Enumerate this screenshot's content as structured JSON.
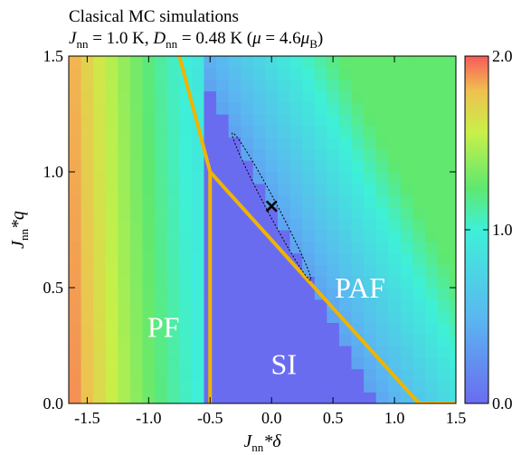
{
  "chart_data": {
    "type": "heatmap",
    "title_line1": "Clasical MC simulations",
    "title_line2": {
      "j_sym": "J",
      "j_sub": "nn",
      "j_val": " = 1.0 K, ",
      "d_sym": "D",
      "d_sub": "nn",
      "d_val": " = 0.48 K (",
      "mu_sym": "μ",
      "mu_eq": " = 4.6",
      "mu_unit": "μ",
      "mu_sub": "B",
      "close": ")"
    },
    "xlabel": {
      "sym": "J",
      "sub": "nn",
      "rest": "*δ"
    },
    "ylabel": {
      "sym": "J",
      "sub": "nn",
      "rest": "*q"
    },
    "xlim": [
      -1.65,
      1.5
    ],
    "ylim": [
      0.0,
      1.5
    ],
    "xticks": [
      "-1.5",
      "-1.0",
      "-0.5",
      "0.0",
      "0.5",
      "1.0",
      "1.5"
    ],
    "yticks": [
      "0.0",
      "0.5",
      "1.0",
      "1.5"
    ],
    "grid": {
      "x_start": -1.65,
      "dx": 0.1,
      "nx": 32,
      "y_start": 0.0,
      "dy": 0.05,
      "ny": 30
    },
    "colorbar": {
      "min": 0.0,
      "max": 2.0,
      "ticks": [
        "0.0",
        "1.0",
        "2.0"
      ]
    },
    "phase_boundaries": [
      {
        "points": [
          [
            -0.75,
            1.5
          ],
          [
            -0.5,
            1.0
          ],
          [
            -0.5,
            0.0
          ]
        ]
      },
      {
        "points": [
          [
            -0.5,
            1.0
          ],
          [
            1.2,
            0.0
          ],
          [
            1.5,
            0.0
          ]
        ]
      }
    ],
    "regions": [
      {
        "label": "PF",
        "x": -0.88,
        "y": 0.33
      },
      {
        "label": "SI",
        "x": 0.1,
        "y": 0.17
      },
      {
        "label": "PAF",
        "x": 0.72,
        "y": 0.5
      }
    ],
    "marker": {
      "x": 0.0,
      "y": 0.85,
      "symbol": "×"
    },
    "ellipse": {
      "center": [
        0.0,
        0.85
      ],
      "length": 0.9,
      "width": 0.09,
      "angle_deg": -45
    }
  }
}
